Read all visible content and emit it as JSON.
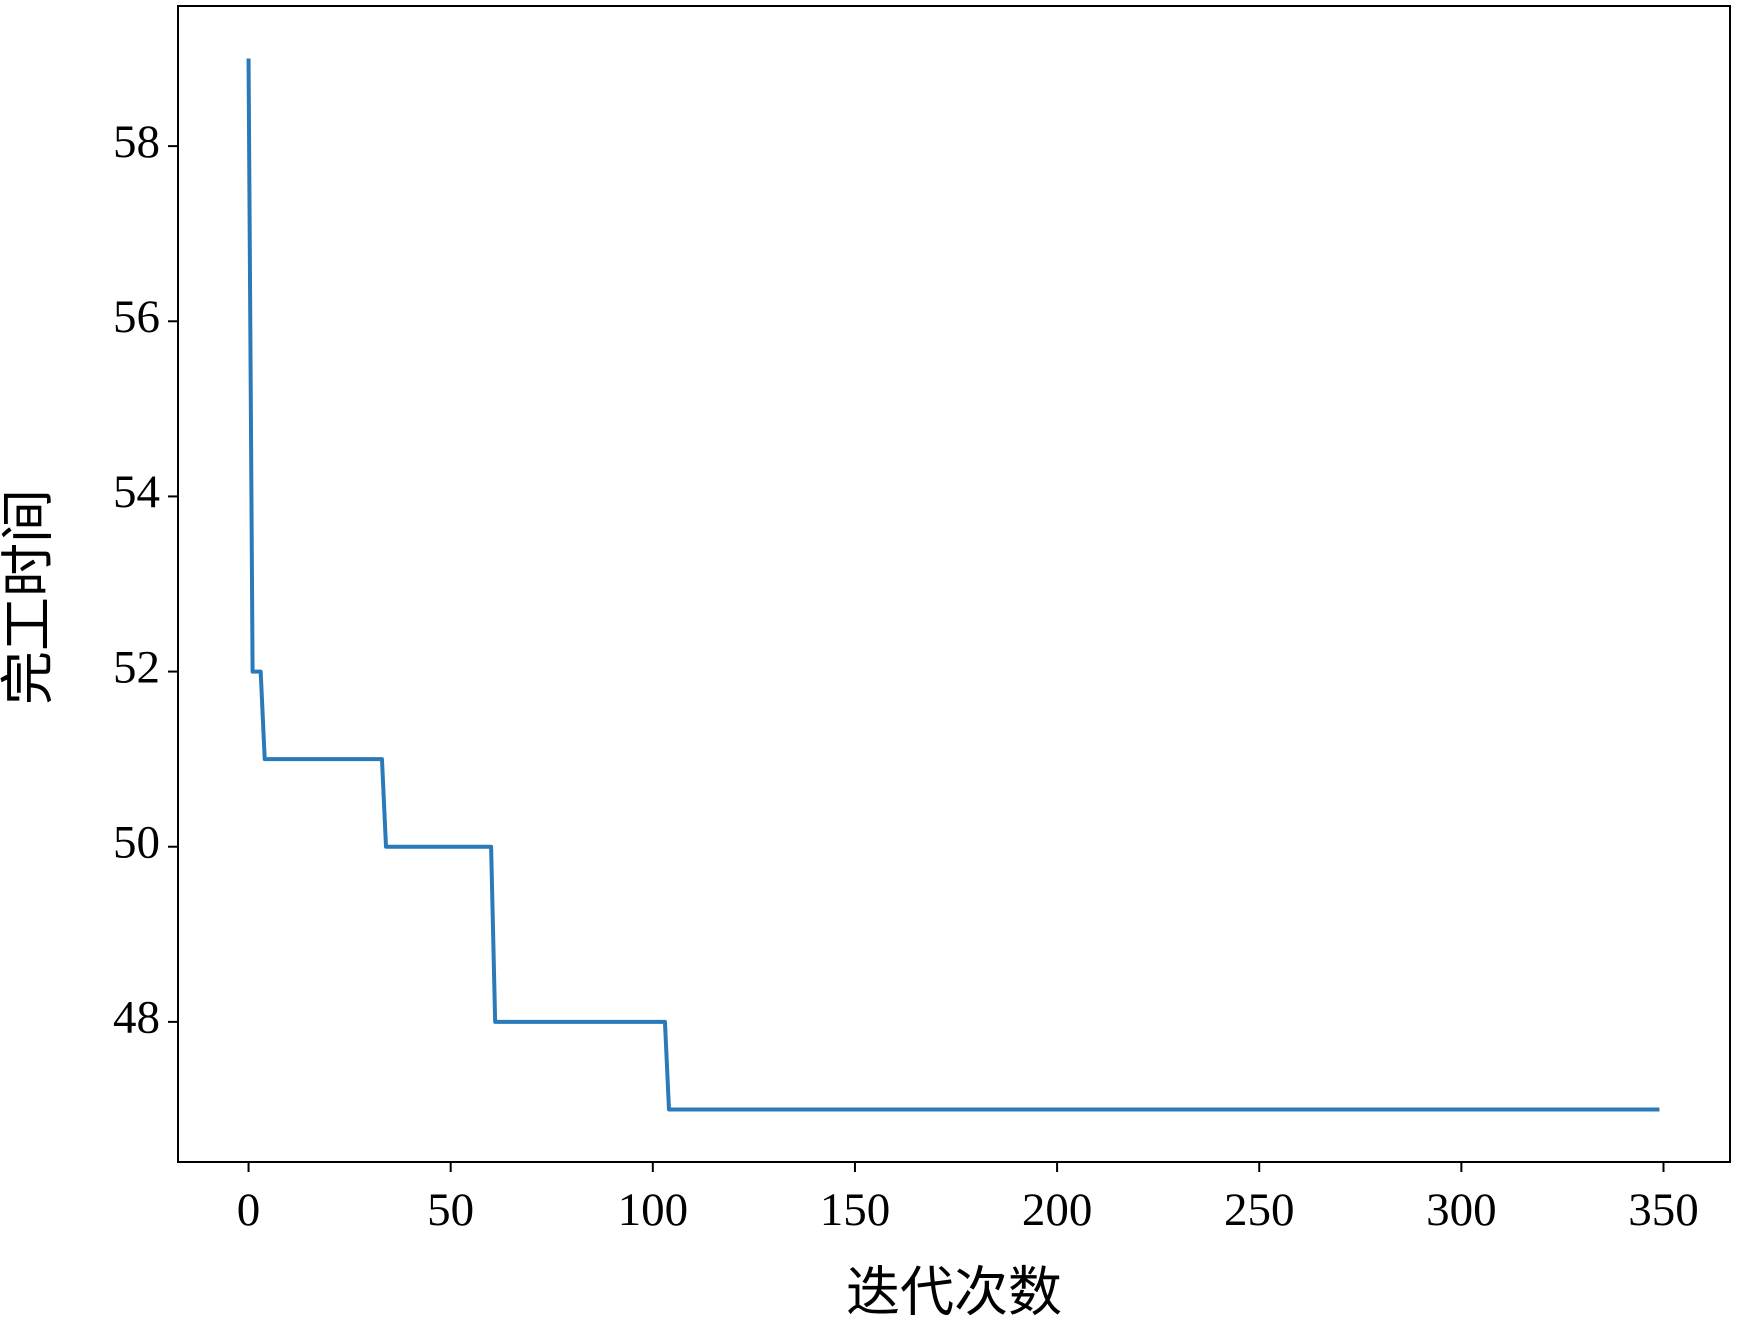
{
  "chart_data": {
    "type": "line",
    "x_label": "迭代次数",
    "y_label": "完工时间",
    "x": [
      0,
      1,
      3,
      4,
      33,
      34,
      60,
      61,
      103,
      104,
      349
    ],
    "series": [
      {
        "color": "#2a7ab9",
        "values": [
          59,
          52,
          52,
          51,
          51,
          50,
          50,
          48,
          48,
          47,
          47
        ]
      }
    ],
    "xlim": [
      -17.45,
      366.45
    ],
    "ylim": [
      46.4,
      59.6
    ],
    "xticks": [
      0,
      50,
      100,
      150,
      200,
      250,
      300,
      350
    ],
    "yticks": [
      48,
      50,
      52,
      54,
      56,
      58
    ],
    "grid": false
  }
}
